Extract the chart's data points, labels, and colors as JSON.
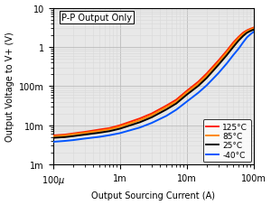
{
  "xlabel": "Output Sourcing Current (A)",
  "ylabel": "Output Voltage to V+ (V)",
  "xlim": [
    0.0001,
    0.1
  ],
  "ylim": [
    0.001,
    10
  ],
  "annotation": "P-P Output Only",
  "legend": [
    "125°C",
    "85°C",
    "25°C",
    "-40°C"
  ],
  "colors": [
    "#ff2200",
    "#ff8800",
    "#000000",
    "#0055ff"
  ],
  "curves": {
    "125C": {
      "x": [
        0.0001,
        0.00015,
        0.0002,
        0.0003,
        0.0005,
        0.0007,
        0.001,
        0.002,
        0.003,
        0.005,
        0.007,
        0.01,
        0.015,
        0.02,
        0.03,
        0.04,
        0.05,
        0.06,
        0.07,
        0.08,
        0.09,
        0.1
      ],
      "y": [
        0.0055,
        0.0058,
        0.0062,
        0.0068,
        0.0078,
        0.0085,
        0.01,
        0.015,
        0.02,
        0.032,
        0.045,
        0.075,
        0.13,
        0.21,
        0.45,
        0.8,
        1.3,
        1.8,
        2.3,
        2.65,
        2.9,
        3.1
      ]
    },
    "85C": {
      "x": [
        0.0001,
        0.00015,
        0.0002,
        0.0003,
        0.0005,
        0.0007,
        0.001,
        0.002,
        0.003,
        0.005,
        0.007,
        0.01,
        0.015,
        0.02,
        0.03,
        0.04,
        0.05,
        0.06,
        0.07,
        0.08,
        0.09,
        0.1
      ],
      "y": [
        0.0052,
        0.0055,
        0.0059,
        0.0064,
        0.0072,
        0.0079,
        0.0092,
        0.0135,
        0.018,
        0.029,
        0.04,
        0.068,
        0.115,
        0.185,
        0.4,
        0.72,
        1.15,
        1.65,
        2.1,
        2.5,
        2.75,
        2.95
      ]
    },
    "25C": {
      "x": [
        0.0001,
        0.00015,
        0.0002,
        0.0003,
        0.0005,
        0.0007,
        0.001,
        0.002,
        0.003,
        0.005,
        0.007,
        0.01,
        0.015,
        0.02,
        0.03,
        0.04,
        0.05,
        0.06,
        0.07,
        0.08,
        0.09,
        0.1
      ],
      "y": [
        0.0048,
        0.005,
        0.0053,
        0.0058,
        0.0065,
        0.0071,
        0.0082,
        0.012,
        0.016,
        0.0255,
        0.036,
        0.06,
        0.102,
        0.162,
        0.35,
        0.62,
        1.0,
        1.45,
        1.9,
        2.3,
        2.55,
        2.75
      ]
    },
    "-40C": {
      "x": [
        0.0001,
        0.00015,
        0.0002,
        0.0003,
        0.0005,
        0.0007,
        0.001,
        0.002,
        0.003,
        0.005,
        0.007,
        0.01,
        0.015,
        0.02,
        0.03,
        0.04,
        0.05,
        0.06,
        0.07,
        0.08,
        0.09,
        0.1
      ],
      "y": [
        0.0038,
        0.004,
        0.0042,
        0.0046,
        0.0051,
        0.0056,
        0.0063,
        0.0088,
        0.0115,
        0.0175,
        0.025,
        0.04,
        0.068,
        0.105,
        0.215,
        0.38,
        0.62,
        0.9,
        1.3,
        1.75,
        2.1,
        2.4
      ]
    }
  },
  "background_color": "#ffffff",
  "plot_bg_color": "#e8e8e8",
  "grid_major_color": "#bbbbbb",
  "grid_minor_color": "#d8d8d8",
  "linewidth": 1.4,
  "xlabel_fontsize": 7,
  "ylabel_fontsize": 7,
  "tick_fontsize": 7,
  "legend_fontsize": 6.5,
  "annotation_fontsize": 7
}
